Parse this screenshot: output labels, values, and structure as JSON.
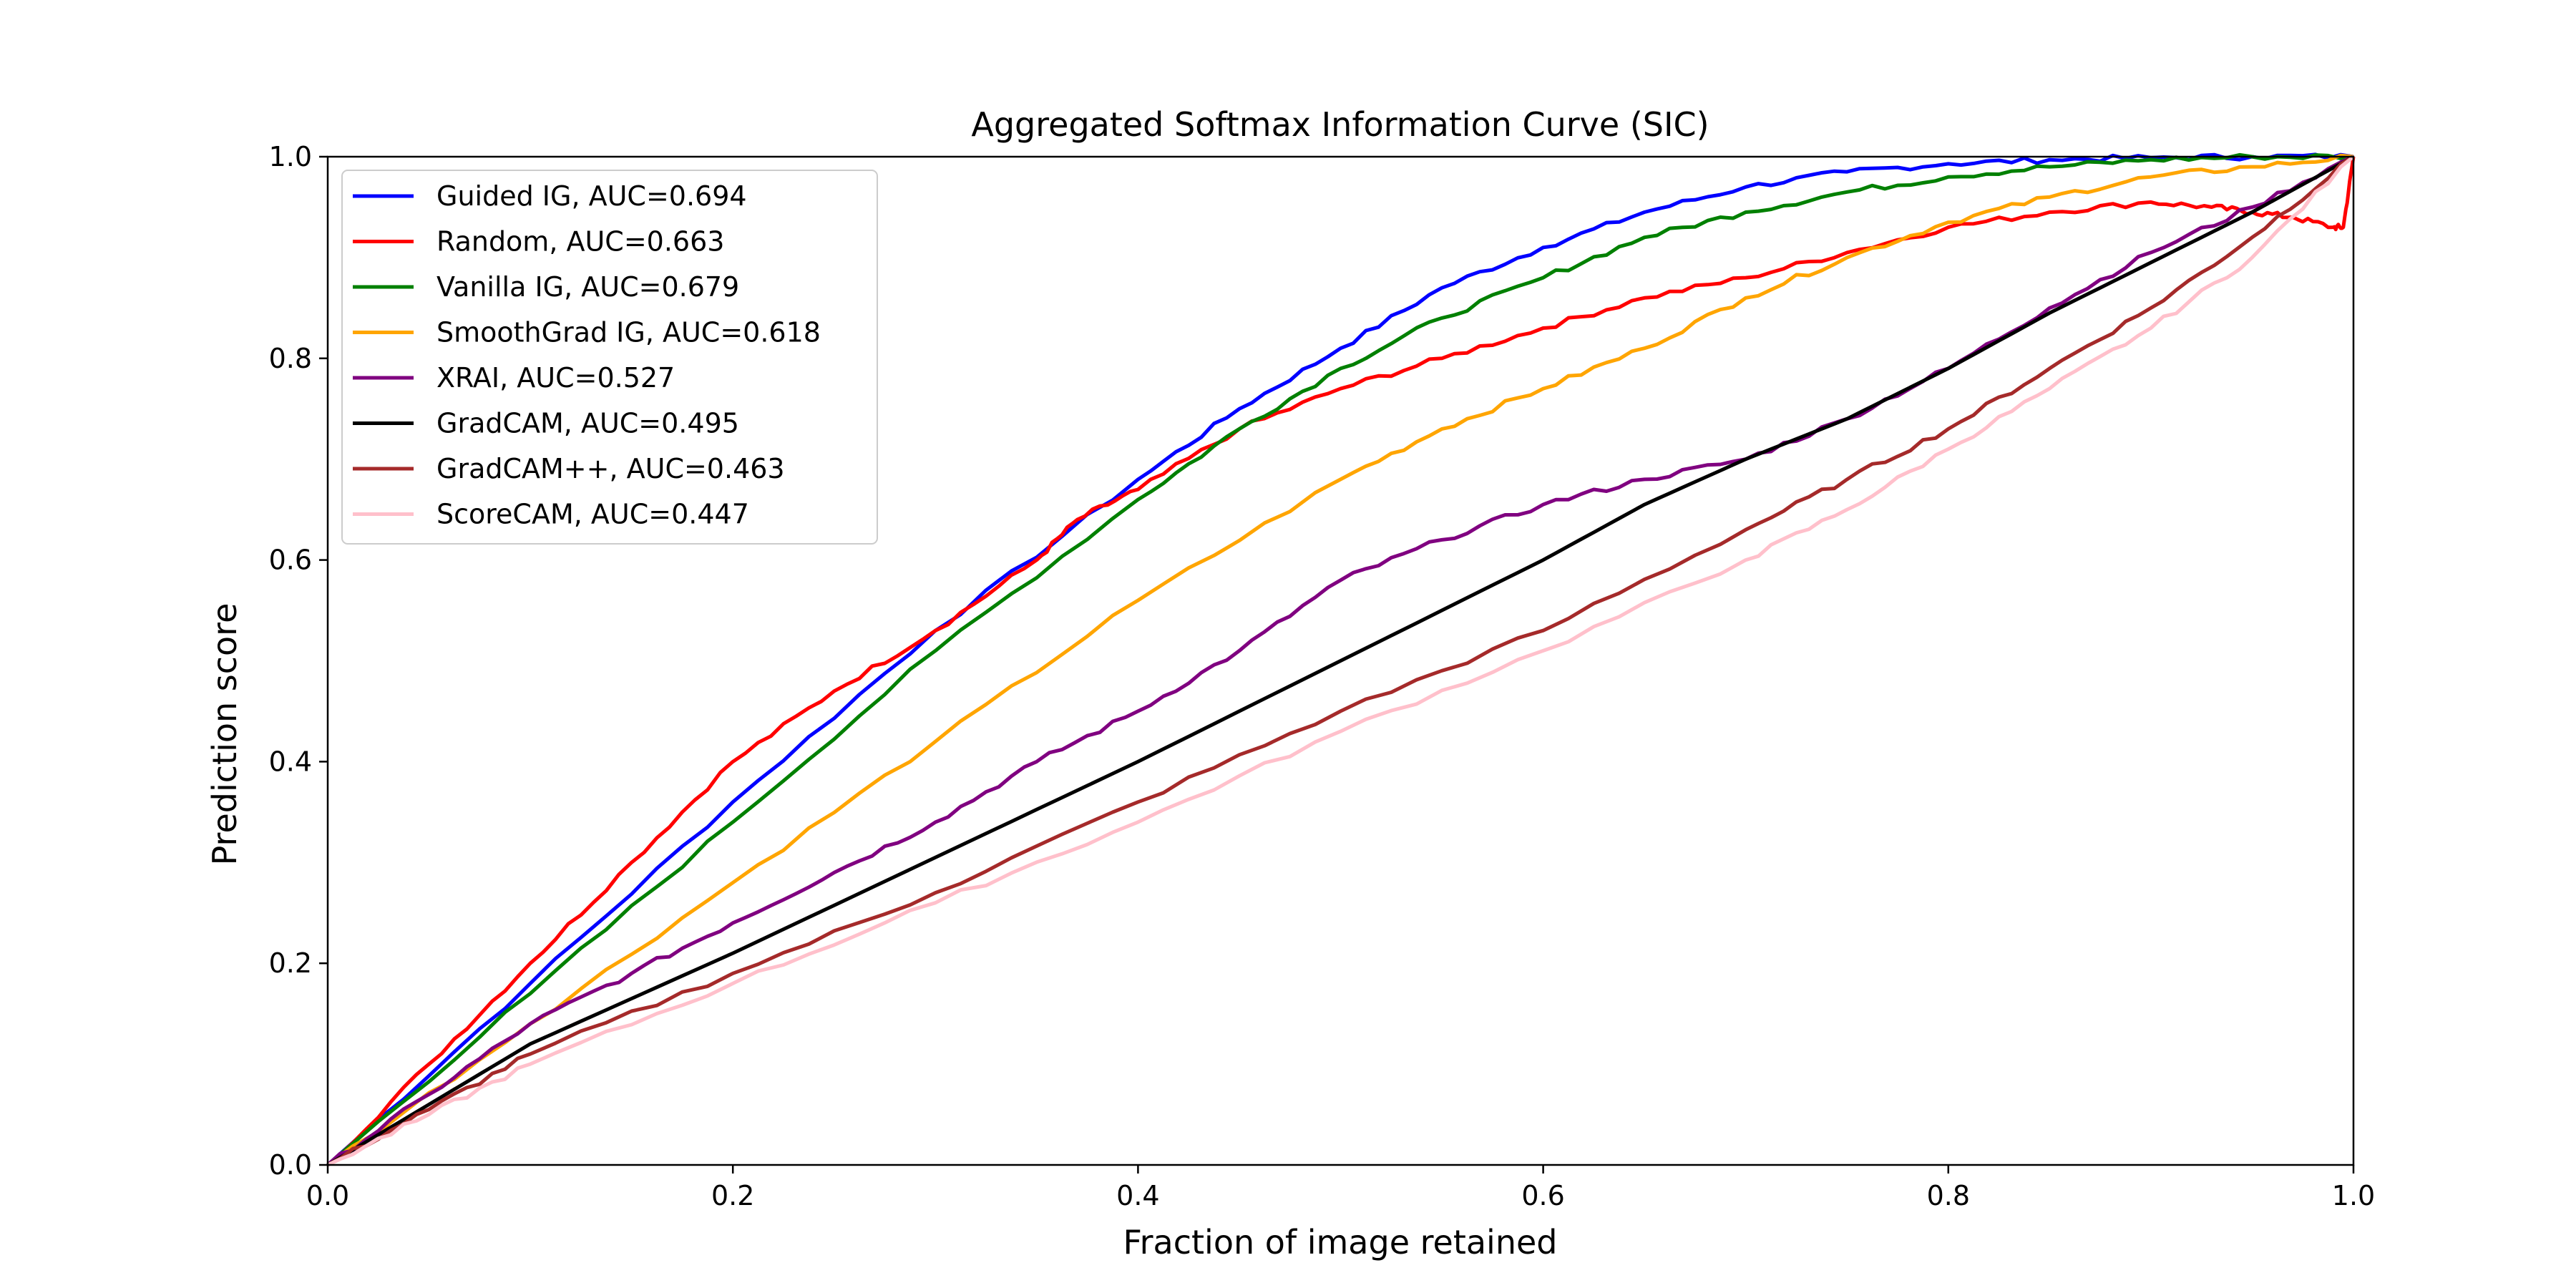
{
  "chart_data": {
    "type": "line",
    "title": "Aggregated Softmax Information Curve (SIC)",
    "xlabel": "Fraction of image retained",
    "ylabel": "Prediction score",
    "xlim": [
      0.0,
      1.0
    ],
    "ylim": [
      0.0,
      1.0
    ],
    "xticks": [
      "0.0",
      "0.2",
      "0.4",
      "0.6",
      "0.8",
      "1.0"
    ],
    "yticks": [
      "0.0",
      "0.2",
      "0.4",
      "0.6",
      "0.8",
      "1.0"
    ],
    "grid": false,
    "legend_position": "upper-left",
    "series": [
      {
        "name": "Guided IG, AUC=0.694",
        "color": "#0000ff",
        "x": [
          0,
          0.1,
          0.2,
          0.3,
          0.4,
          0.45,
          0.5,
          0.55,
          0.6,
          0.65,
          0.7,
          0.75,
          0.8,
          0.85,
          0.9,
          0.95,
          1.0
        ],
        "y": [
          0,
          0.18,
          0.36,
          0.53,
          0.68,
          0.75,
          0.81,
          0.87,
          0.91,
          0.945,
          0.97,
          0.985,
          0.993,
          0.997,
          0.999,
          1.0,
          1.0
        ]
      },
      {
        "name": "Random, AUC=0.663",
        "color": "#ff0000",
        "x": [
          0,
          0.05,
          0.1,
          0.15,
          0.2,
          0.25,
          0.3,
          0.35,
          0.37,
          0.4,
          0.45,
          0.5,
          0.55,
          0.6,
          0.65,
          0.7,
          0.75,
          0.8,
          0.85,
          0.9,
          0.93,
          0.95,
          0.97,
          0.99,
          0.995,
          1.0
        ],
        "y": [
          0,
          0.1,
          0.2,
          0.3,
          0.4,
          0.47,
          0.53,
          0.6,
          0.64,
          0.67,
          0.73,
          0.77,
          0.8,
          0.83,
          0.86,
          0.88,
          0.905,
          0.93,
          0.945,
          0.955,
          0.95,
          0.945,
          0.94,
          0.93,
          0.93,
          1.0
        ]
      },
      {
        "name": "Vanilla IG, AUC=0.679",
        "color": "#008000",
        "x": [
          0,
          0.1,
          0.2,
          0.3,
          0.4,
          0.45,
          0.5,
          0.55,
          0.6,
          0.65,
          0.7,
          0.75,
          0.8,
          0.85,
          0.9,
          0.95,
          1.0
        ],
        "y": [
          0,
          0.17,
          0.34,
          0.51,
          0.66,
          0.73,
          0.79,
          0.84,
          0.88,
          0.92,
          0.945,
          0.965,
          0.98,
          0.99,
          0.997,
          1.0,
          1.0
        ]
      },
      {
        "name": "SmoothGrad IG, AUC=0.618",
        "color": "#ffa500",
        "x": [
          0,
          0.1,
          0.2,
          0.3,
          0.4,
          0.5,
          0.55,
          0.6,
          0.65,
          0.7,
          0.75,
          0.8,
          0.85,
          0.9,
          0.95,
          1.0
        ],
        "y": [
          0,
          0.14,
          0.28,
          0.42,
          0.56,
          0.68,
          0.73,
          0.77,
          0.81,
          0.86,
          0.9,
          0.935,
          0.96,
          0.98,
          0.99,
          1.0
        ]
      },
      {
        "name": "XRAI, AUC=0.527",
        "color": "#800080",
        "x": [
          0,
          0.05,
          0.1,
          0.15,
          0.2,
          0.25,
          0.3,
          0.35,
          0.4,
          0.45,
          0.5,
          0.55,
          0.6,
          0.65,
          0.7,
          0.75,
          0.8,
          0.85,
          0.9,
          0.95,
          1.0
        ],
        "y": [
          0,
          0.07,
          0.14,
          0.19,
          0.24,
          0.29,
          0.34,
          0.4,
          0.45,
          0.51,
          0.58,
          0.62,
          0.655,
          0.68,
          0.7,
          0.74,
          0.79,
          0.85,
          0.905,
          0.95,
          1.0
        ]
      },
      {
        "name": "GradCAM, AUC=0.495",
        "color": "#000000",
        "x": [
          0,
          0.05,
          0.1,
          0.2,
          0.3,
          0.4,
          0.5,
          0.6,
          0.65,
          0.7,
          0.75,
          0.8,
          0.85,
          0.9,
          0.95,
          1.0
        ],
        "y": [
          0,
          0.06,
          0.12,
          0.21,
          0.305,
          0.4,
          0.5,
          0.6,
          0.655,
          0.7,
          0.74,
          0.79,
          0.845,
          0.895,
          0.945,
          1.0
        ]
      },
      {
        "name": "GradCAM++, AUC=0.463",
        "color": "#a52a2a",
        "x": [
          0,
          0.05,
          0.1,
          0.2,
          0.3,
          0.4,
          0.5,
          0.6,
          0.7,
          0.75,
          0.8,
          0.85,
          0.9,
          0.95,
          1.0
        ],
        "y": [
          0,
          0.055,
          0.11,
          0.19,
          0.27,
          0.36,
          0.45,
          0.53,
          0.63,
          0.68,
          0.73,
          0.79,
          0.85,
          0.92,
          1.0
        ]
      },
      {
        "name": "ScoreCAM, AUC=0.447",
        "color": "#ffc0cb",
        "x": [
          0,
          0.05,
          0.1,
          0.2,
          0.3,
          0.4,
          0.5,
          0.6,
          0.7,
          0.75,
          0.8,
          0.85,
          0.9,
          0.95,
          1.0
        ],
        "y": [
          0,
          0.05,
          0.1,
          0.18,
          0.26,
          0.34,
          0.43,
          0.51,
          0.6,
          0.65,
          0.71,
          0.77,
          0.83,
          0.9,
          1.0
        ]
      }
    ]
  }
}
